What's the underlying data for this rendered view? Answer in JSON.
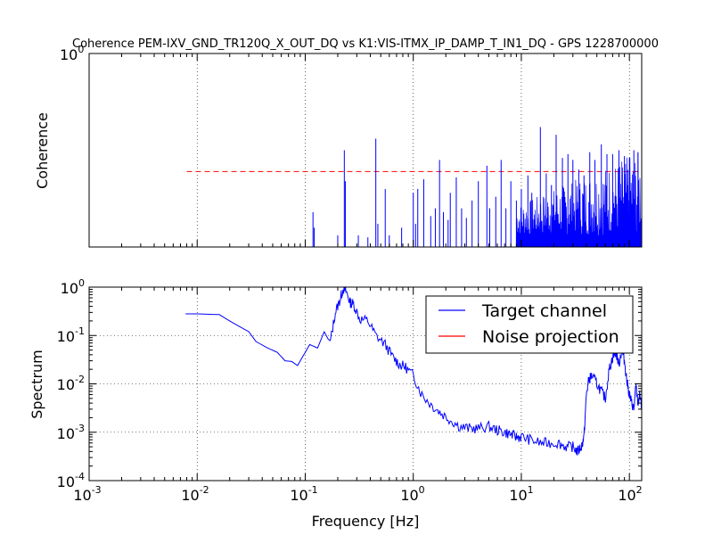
{
  "chart_data": [
    {
      "type": "line",
      "title": "Coherence PEM-IXV_GND_TR120Q_X_OUT_DQ vs K1:VIS-ITMX_IP_DAMP_T_IN1_DQ - GPS 1228700000",
      "xlabel": "",
      "ylabel": "Coherence",
      "x_scale": "log",
      "xlim": [
        0.001,
        130
      ],
      "ylim": [
        0,
        1
      ],
      "ytick_labels": [
        {
          "base": "10",
          "exp": "0",
          "value": 1
        }
      ],
      "grid": true,
      "threshold": {
        "value": 0.39,
        "x_range": [
          0.008,
          130
        ],
        "color": "#ff0000",
        "style": "dashed"
      },
      "series": [
        {
          "color": "#0000ff",
          "style": "spikes",
          "spikes": [
            [
              0.118,
              0.18
            ],
            [
              0.121,
              0.1
            ],
            [
              0.2,
              0.06
            ],
            [
              0.23,
              0.5
            ],
            [
              0.235,
              0.34
            ],
            [
              0.31,
              0.06
            ],
            [
              0.38,
              0.05
            ],
            [
              0.45,
              0.56
            ],
            [
              0.47,
              0.12
            ],
            [
              0.55,
              0.3
            ],
            [
              0.6,
              0.06
            ],
            [
              0.78,
              0.1
            ],
            [
              1.0,
              0.28
            ],
            [
              1.05,
              0.12
            ],
            [
              1.1,
              0.3
            ],
            [
              1.25,
              0.35
            ],
            [
              1.45,
              0.16
            ],
            [
              1.6,
              0.2
            ],
            [
              1.75,
              0.45
            ],
            [
              1.9,
              0.18
            ],
            [
              2.1,
              0.14
            ],
            [
              2.2,
              0.28
            ],
            [
              2.5,
              0.36
            ],
            [
              2.8,
              0.2
            ],
            [
              3.1,
              0.15
            ],
            [
              3.5,
              0.24
            ],
            [
              4.0,
              0.34
            ],
            [
              4.8,
              0.42
            ],
            [
              5.1,
              0.2
            ],
            [
              5.8,
              0.26
            ],
            [
              6.5,
              0.45
            ],
            [
              7.2,
              0.2
            ],
            [
              8.0,
              0.34
            ],
            [
              9.0,
              0.24
            ],
            [
              10.0,
              0.3
            ],
            [
              11.5,
              0.37
            ],
            [
              12.5,
              0.28
            ],
            [
              15.0,
              0.62
            ],
            [
              17.0,
              0.38
            ],
            [
              19.0,
              0.32
            ],
            [
              21.0,
              0.58
            ],
            [
              24.0,
              0.46
            ],
            [
              27.0,
              0.48
            ],
            [
              30.0,
              0.45
            ],
            [
              34.0,
              0.4
            ],
            [
              38.0,
              0.37
            ],
            [
              43.0,
              0.49
            ],
            [
              48.0,
              0.45
            ],
            [
              55.0,
              0.53
            ],
            [
              62.0,
              0.48
            ],
            [
              70.0,
              0.48
            ],
            [
              80.0,
              0.5
            ],
            [
              90.0,
              0.47
            ],
            [
              100.0,
              0.46
            ],
            [
              110.0,
              0.5
            ],
            [
              120.0,
              0.49
            ]
          ],
          "dense_band": {
            "x_range": [
              9.0,
              130
            ],
            "min": 0.06,
            "max": 0.5
          }
        }
      ]
    },
    {
      "type": "line",
      "title": "",
      "xlabel": "Frequency [Hz]",
      "ylabel": "Spectrum",
      "x_scale": "log",
      "y_scale": "log",
      "xlim": [
        0.001,
        130
      ],
      "ylim": [
        0.0001,
        1
      ],
      "xtick_labels": [
        {
          "base": "10",
          "exp": "-3",
          "value": 0.001
        },
        {
          "base": "10",
          "exp": "-2",
          "value": 0.01
        },
        {
          "base": "10",
          "exp": "-1",
          "value": 0.1
        },
        {
          "base": "10",
          "exp": "0",
          "value": 1
        },
        {
          "base": "10",
          "exp": "1",
          "value": 10
        },
        {
          "base": "10",
          "exp": "2",
          "value": 100
        }
      ],
      "ytick_labels": [
        {
          "base": "10",
          "exp": "0",
          "value": 1
        },
        {
          "base": "10",
          "exp": "-1",
          "value": 0.1
        },
        {
          "base": "10",
          "exp": "-2",
          "value": 0.01
        },
        {
          "base": "10",
          "exp": "-3",
          "value": 0.001
        },
        {
          "base": "10",
          "exp": "-4",
          "value": 0.0001
        }
      ],
      "grid": true,
      "legend_position": "top-right",
      "series": [
        {
          "name": "Target channel",
          "color": "#0000ff",
          "x": [
            0.0078,
            0.01,
            0.016,
            0.02,
            0.025,
            0.03,
            0.035,
            0.045,
            0.055,
            0.065,
            0.075,
            0.085,
            0.1,
            0.11,
            0.13,
            0.15,
            0.17,
            0.19,
            0.21,
            0.225,
            0.24,
            0.26,
            0.28,
            0.32,
            0.38,
            0.45,
            0.55,
            0.65,
            0.75,
            0.85,
            1.0,
            1.2,
            1.5,
            1.8,
            2.2,
            2.7,
            3.3,
            4.0,
            5.0,
            6.0,
            7.0,
            8.0,
            9.0,
            10.0,
            12.0,
            15.0,
            18.0,
            22.0,
            26.0,
            30.0,
            33.0,
            36.0,
            38.0,
            40.0,
            42.0,
            45.0,
            50.0,
            55.0,
            60.0,
            65.0,
            70.0,
            75.0,
            80.0,
            85.0,
            90.0,
            95.0,
            100.0,
            105.0,
            110.0,
            115.0,
            120.0,
            125.0,
            130.0
          ],
          "y": [
            0.28,
            0.28,
            0.27,
            0.2,
            0.15,
            0.12,
            0.075,
            0.055,
            0.045,
            0.03,
            0.029,
            0.024,
            0.045,
            0.065,
            0.055,
            0.12,
            0.07,
            0.3,
            0.55,
            0.95,
            0.8,
            0.48,
            0.45,
            0.22,
            0.2,
            0.1,
            0.065,
            0.035,
            0.025,
            0.022,
            0.015,
            0.006,
            0.0035,
            0.0025,
            0.0018,
            0.0013,
            0.0012,
            0.0012,
            0.0013,
            0.0011,
            0.001,
            0.0009,
            0.0008,
            0.0008,
            0.0007,
            0.0006,
            0.0006,
            0.0006,
            0.0005,
            0.0005,
            0.0004,
            0.0005,
            0.0008,
            0.006,
            0.012,
            0.015,
            0.01,
            0.007,
            0.005,
            0.02,
            0.035,
            0.045,
            0.025,
            0.05,
            0.03,
            0.011,
            0.006,
            0.004,
            0.003,
            0.009,
            0.004,
            0.006,
            0.003
          ]
        },
        {
          "name": "Noise projection",
          "color": "#ff0000",
          "x": [],
          "y": []
        }
      ]
    }
  ]
}
